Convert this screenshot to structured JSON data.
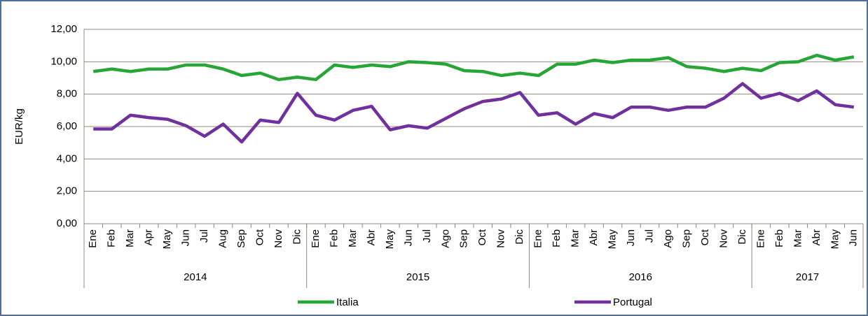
{
  "chart_data": {
    "type": "line",
    "y_label": "EUR/kg",
    "categories": [
      "Ene",
      "Feb",
      "Mar",
      "Apr",
      "May",
      "Jun",
      "Jul",
      "Aug",
      "Sep",
      "Oct",
      "Nov",
      "Dic",
      "Ene",
      "Feb",
      "Mar",
      "Abr",
      "May",
      "Jun",
      "Jul",
      "Ago",
      "Sep",
      "Oct",
      "Nov",
      "Dic",
      "Ene",
      "Feb",
      "Mar",
      "Abr",
      "May",
      "Jun",
      "Jul",
      "Ago",
      "Sep",
      "Oct",
      "Nov",
      "Dic",
      "Ene",
      "Feb",
      "Mar",
      "Abr",
      "May",
      "Jun"
    ],
    "groups": [
      {
        "label": "2014",
        "span": 12
      },
      {
        "label": "2015",
        "span": 12
      },
      {
        "label": "2016",
        "span": 12
      },
      {
        "label": "2017",
        "span": 6
      }
    ],
    "series": [
      {
        "name": "Italia",
        "color": "#25a636",
        "values": [
          9.4,
          9.55,
          9.4,
          9.55,
          9.55,
          9.8,
          9.8,
          9.55,
          9.15,
          9.3,
          8.9,
          9.05,
          8.9,
          9.8,
          9.65,
          9.8,
          9.7,
          10.0,
          9.95,
          9.85,
          9.45,
          9.4,
          9.15,
          9.3,
          9.15,
          9.85,
          9.85,
          10.1,
          9.95,
          10.1,
          10.1,
          10.25,
          9.7,
          9.6,
          9.4,
          9.6,
          9.45,
          9.95,
          10.0,
          10.4,
          10.1,
          10.3
        ]
      },
      {
        "name": "Portugal",
        "color": "#7030a0",
        "values": [
          5.85,
          5.85,
          6.7,
          6.55,
          6.45,
          6.05,
          5.4,
          6.15,
          5.05,
          6.4,
          6.25,
          8.05,
          6.7,
          6.4,
          7.0,
          7.25,
          5.8,
          6.05,
          5.9,
          6.5,
          7.1,
          7.55,
          7.7,
          8.1,
          6.7,
          6.85,
          6.15,
          6.8,
          6.55,
          7.2,
          7.2,
          7.0,
          7.2,
          7.2,
          7.75,
          8.65,
          7.75,
          8.05,
          7.6,
          8.2,
          7.35,
          7.2
        ]
      }
    ],
    "ylim": [
      0,
      12
    ],
    "yticks": [
      {
        "value": 0,
        "label": "0,00"
      },
      {
        "value": 2,
        "label": "2,00"
      },
      {
        "value": 4,
        "label": "4,00"
      },
      {
        "value": 6,
        "label": "6,00"
      },
      {
        "value": 8,
        "label": "8,00"
      },
      {
        "value": 10,
        "label": "10,00"
      },
      {
        "value": 12,
        "label": "12,00"
      }
    ],
    "grid": true,
    "legend": "bottom"
  }
}
